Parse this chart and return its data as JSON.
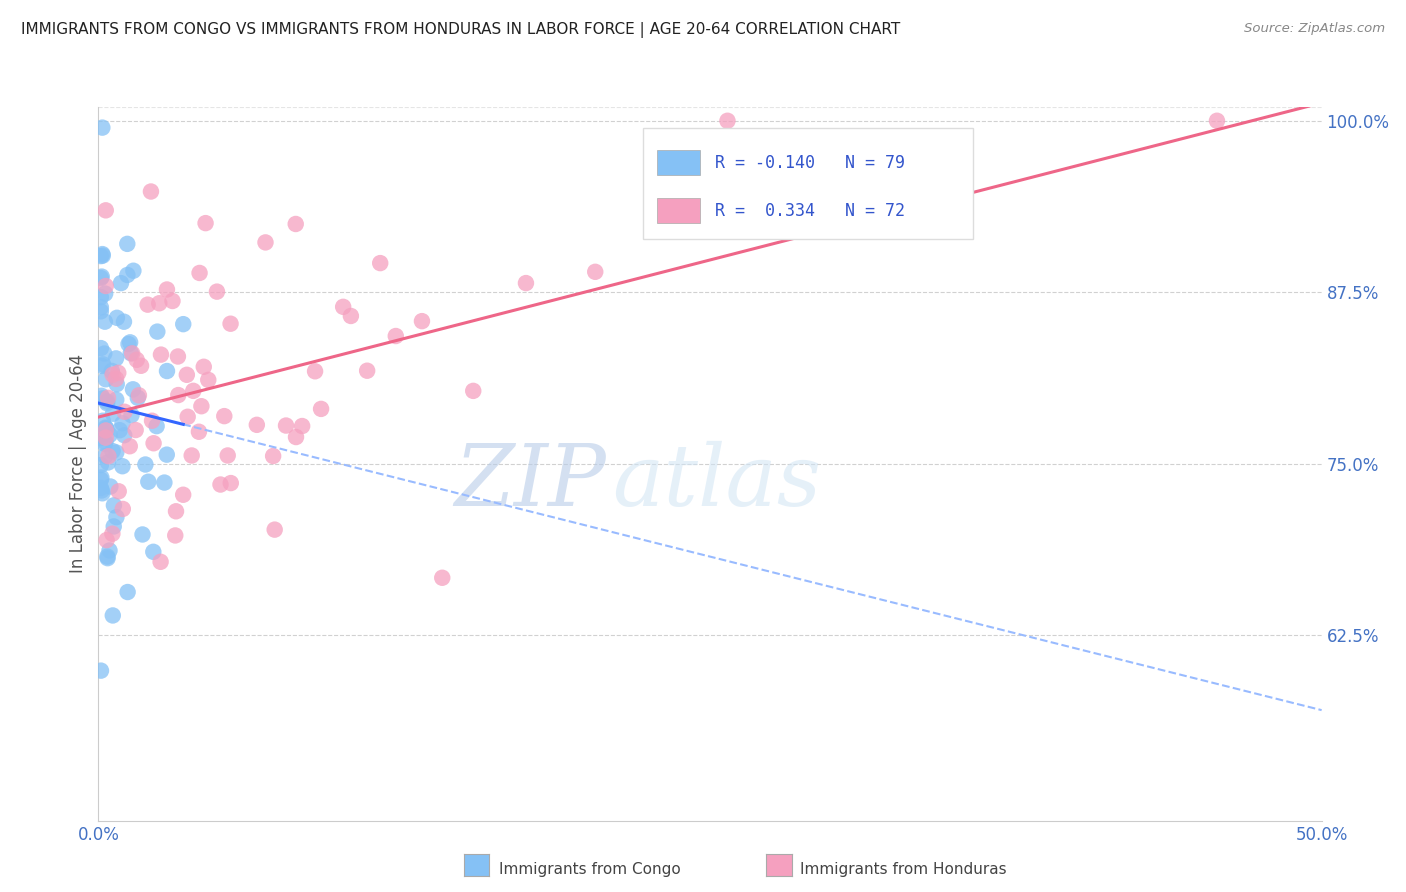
{
  "title": "IMMIGRANTS FROM CONGO VS IMMIGRANTS FROM HONDURAS IN LABOR FORCE | AGE 20-64 CORRELATION CHART",
  "source": "Source: ZipAtlas.com",
  "ylabel": "In Labor Force | Age 20-64",
  "xlim": [
    0.0,
    0.5
  ],
  "ylim": [
    0.49,
    1.01
  ],
  "ytick_positions": [
    0.625,
    0.75,
    0.875,
    1.0
  ],
  "ytick_labels": [
    "62.5%",
    "75.0%",
    "87.5%",
    "100.0%"
  ],
  "xtick_positions": [
    0.0,
    0.125,
    0.25,
    0.375,
    0.5
  ],
  "xtick_labels": [
    "0.0%",
    "",
    "",
    "",
    "50.0%"
  ],
  "congo_R": -0.14,
  "congo_N": 79,
  "honduras_R": 0.334,
  "honduras_N": 72,
  "congo_color": "#85C1F5",
  "honduras_color": "#F5A0BF",
  "congo_line_color": "#3366FF",
  "congo_dash_color": "#99BBFF",
  "honduras_line_color": "#EE6688",
  "watermark_zip": "#C5D8F0",
  "watermark_atlas": "#D5E8F8",
  "background_color": "#ffffff",
  "grid_color": "#cccccc",
  "title_color": "#222222",
  "axis_label_color": "#4472C4",
  "ylabel_color": "#555555",
  "legend_text_color": "#111111",
  "legend_R_color": "#3355CC",
  "source_color": "#888888"
}
